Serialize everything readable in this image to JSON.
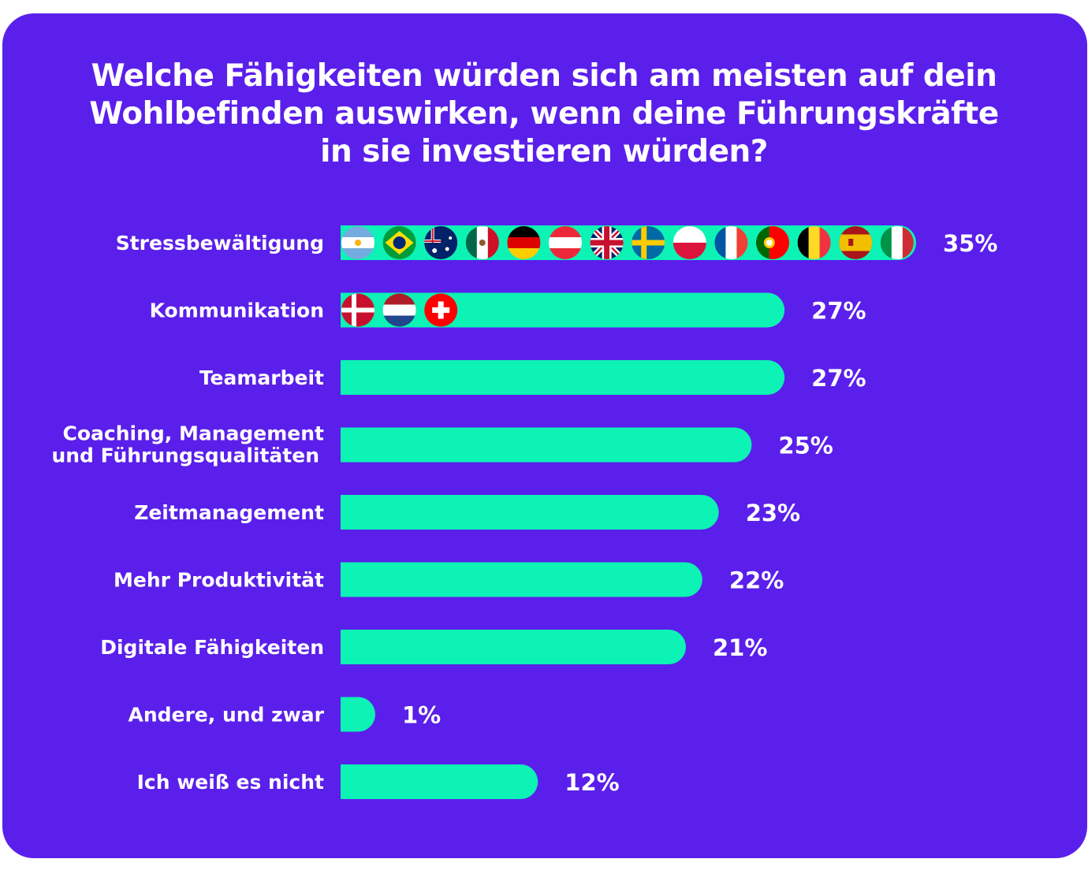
{
  "chart_data": {
    "type": "bar",
    "orientation": "horizontal",
    "title": "Welche Fähigkeiten würden sich am meisten auf dein Wohlbefinden auswirken, wenn deine Führungskräfte in sie investieren würden?",
    "categories": [
      "Stressbewältigung",
      "Kommunikation",
      "Teamarbeit",
      "Coaching, Management\nund Führungsqualitäten",
      "Zeitmanagement",
      "Mehr Produktivität",
      "Digitale Fähigkeiten",
      "Andere, und zwar",
      "Ich weiß es nicht"
    ],
    "values": [
      35,
      27,
      27,
      25,
      23,
      22,
      21,
      1,
      12
    ],
    "value_labels": [
      "35%",
      "27%",
      "27%",
      "25%",
      "23%",
      "22%",
      "21%",
      "1%",
      "12%"
    ],
    "flag_groups": [
      [
        "argentina-flag-icon",
        "brazil-flag-icon",
        "australia-flag-icon",
        "mexico-flag-icon",
        "germany-flag-icon",
        "austria-flag-icon",
        "uk-flag-icon",
        "sweden-flag-icon",
        "poland-flag-icon",
        "france-flag-icon",
        "portugal-flag-icon",
        "belgium-flag-icon",
        "spain-flag-icon",
        "italy-flag-icon"
      ],
      [
        "denmark-flag-icon",
        "netherlands-flag-icon",
        "switzerland-flag-icon"
      ],
      [],
      [],
      [],
      [],
      [],
      [],
      []
    ],
    "grid": false,
    "legend": "none"
  },
  "colors": {
    "background": "#5a1fea",
    "bar": "#0df2b5",
    "text": "#ffffff"
  }
}
